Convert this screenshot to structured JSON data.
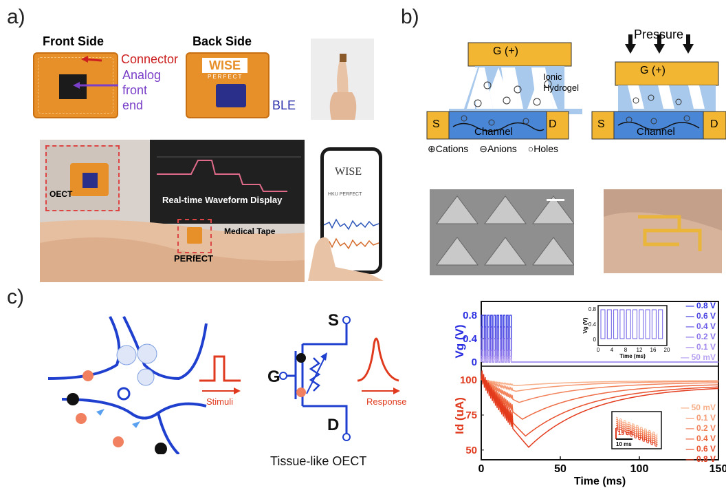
{
  "panel_labels": {
    "a": "a)",
    "b": "b)",
    "c": "c)"
  },
  "panel_a": {
    "front_title": "Front Side",
    "back_title": "Back Side",
    "connector_label": "Connector",
    "afe_label_1": "Analog",
    "afe_label_2": "front",
    "afe_label_3": "end",
    "ble_label": "BLE",
    "board_text_wise": "WISE",
    "board_text_perfect": "PERFECT",
    "oect_label": "OECT",
    "monitor_text": "Real-time Waveform Display",
    "tape_label": "Medical Tape",
    "perfect_label": "PERfECT",
    "phone_logo": "WISE",
    "phone_title": "HKU PERFECT"
  },
  "panel_b": {
    "gate_label": "G (+)",
    "gate_label_2": "G (+)",
    "pressure_label": "Pressure",
    "hydrogel_1": "Ionic",
    "hydrogel_2": "Hydrogel",
    "source": "S",
    "drain": "D",
    "channel": "Channel",
    "source_2": "S",
    "drain_2": "D",
    "channel_2": "Channel",
    "legend_cations": "Cations",
    "legend_anions": "Anions",
    "legend_holes": "Holes"
  },
  "panel_c": {
    "stimuli": "Stimuli",
    "response": "Response",
    "g": "G",
    "s": "S",
    "d": "D",
    "caption": "Tissue-like OECT"
  },
  "colors": {
    "blue": "#1f3fcf",
    "red": "#e03a1e",
    "gold": "#f2b632",
    "hydrogel": "#a8c8ec"
  },
  "chart_data": {
    "type": "line",
    "xlabel": "Time (ms)",
    "xticks": [
      "0",
      "50",
      "100",
      "150"
    ],
    "xlim": [
      0,
      150
    ],
    "top": {
      "ylabel_main": "V",
      "ylabel_sub": "g",
      "ylabel_unit": " (V)",
      "yticks": [
        "0.8",
        "0.4",
        "0"
      ],
      "ylim": [
        0,
        0.8
      ],
      "series": [
        {
          "name": "0.8 V",
          "amplitude": 0.8,
          "color": "#2a2ee0"
        },
        {
          "name": "0.6 V",
          "amplitude": 0.6,
          "color": "#4a45e2"
        },
        {
          "name": "0.4 V",
          "amplitude": 0.4,
          "color": "#6a5ce6"
        },
        {
          "name": "0.2 V",
          "amplitude": 0.2,
          "color": "#8a73ea"
        },
        {
          "name": "0.1 V",
          "amplitude": 0.1,
          "color": "#a58aee"
        },
        {
          "name": "50 mV",
          "amplitude": 0.05,
          "color": "#b9a3f2"
        }
      ],
      "pulse_train_end_ms": 20,
      "inset": {
        "ylabel": "Vg (V)",
        "xlabel": "Time (ms)",
        "xticks": [
          "0",
          "4",
          "8",
          "12",
          "16",
          "20"
        ],
        "yticks": [
          "0.8",
          "0.4",
          "0"
        ]
      }
    },
    "bottom": {
      "ylabel_main": "I",
      "ylabel_sub": "d",
      "ylabel_unit": " (uA)",
      "yticks": [
        "100",
        "75",
        "50"
      ],
      "ylim": [
        45,
        105
      ],
      "series": [
        {
          "name": "50 mV",
          "min_ua": 96,
          "min_t_ms": 22,
          "color": "#f7b08a"
        },
        {
          "name": "0.1 V",
          "min_ua": 92,
          "min_t_ms": 22,
          "color": "#f59a72"
        },
        {
          "name": "0.2 V",
          "min_ua": 84,
          "min_t_ms": 24,
          "color": "#f2825a"
        },
        {
          "name": "0.4 V",
          "min_ua": 72,
          "min_t_ms": 26,
          "color": "#ee6a42"
        },
        {
          "name": "0.6 V",
          "min_ua": 60,
          "min_t_ms": 28,
          "color": "#e9502c"
        },
        {
          "name": "0.8 V",
          "min_ua": 52,
          "min_t_ms": 30,
          "color": "#e33a1c"
        }
      ],
      "inset": {
        "scale_y": "15 uA",
        "scale_x": "10 ms"
      }
    }
  }
}
